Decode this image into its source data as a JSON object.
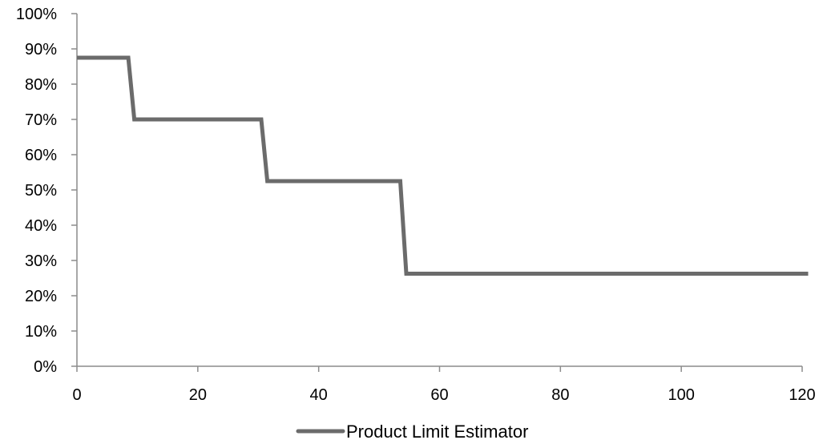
{
  "chart_data": {
    "type": "line",
    "title": "",
    "xlabel": "",
    "ylabel": "",
    "xlim": [
      0,
      120
    ],
    "ylim": [
      0,
      1
    ],
    "x_ticks": [
      0,
      20,
      40,
      60,
      80,
      100,
      120
    ],
    "x_tick_labels": [
      "0",
      "20",
      "40",
      "60",
      "80",
      "100",
      "120"
    ],
    "y_ticks": [
      0,
      0.1,
      0.2,
      0.3,
      0.4,
      0.5,
      0.6,
      0.7,
      0.8,
      0.9,
      1.0
    ],
    "y_tick_labels": [
      "0%",
      "10%",
      "20%",
      "30%",
      "40%",
      "50%",
      "60%",
      "70%",
      "80%",
      "90%",
      "100%"
    ],
    "grid": false,
    "legend_position": "bottom",
    "series": [
      {
        "name": "Product Limit Estimator",
        "color": "#6b6b6b",
        "points": [
          {
            "x": 0,
            "y": 0.875
          },
          {
            "x": 8.5,
            "y": 0.875
          },
          {
            "x": 9.5,
            "y": 0.7
          },
          {
            "x": 30.5,
            "y": 0.7
          },
          {
            "x": 31.5,
            "y": 0.525
          },
          {
            "x": 53.5,
            "y": 0.525
          },
          {
            "x": 54.5,
            "y": 0.2625
          },
          {
            "x": 121,
            "y": 0.2625
          }
        ]
      }
    ]
  },
  "colors": {
    "axis": "#8c8c8c",
    "text": "#000000",
    "series": "#6b6b6b"
  }
}
